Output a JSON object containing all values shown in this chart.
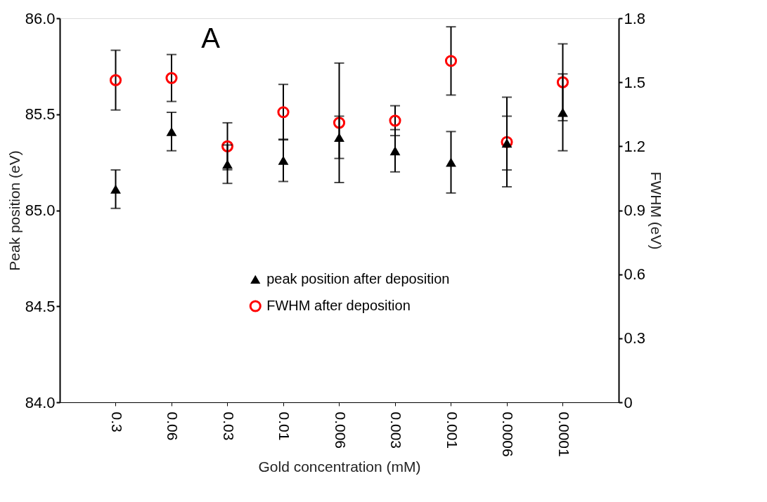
{
  "chart_data": {
    "type": "scatter",
    "xlabel": "Gold concentration (mM)",
    "ylabel": "Peak position (eV)",
    "y2label": "FWHM (eV)",
    "categories": [
      "0.3",
      "0.06",
      "0.03",
      "0.01",
      "0.006",
      "0.003",
      "0.001",
      "0.0006",
      "0.0001"
    ],
    "series": [
      {
        "name": "peak position after deposition",
        "color": "#000000",
        "marker": "triangle",
        "values": [
          85.11,
          85.41,
          85.24,
          85.26,
          85.38,
          85.31,
          85.25,
          85.35,
          85.51
        ],
        "errors": [
          0.1,
          0.1,
          0.1,
          0.11,
          0.11,
          0.11,
          0.16,
          0.14,
          0.2
        ]
      },
      {
        "name": "FWHM after deposition",
        "color": "#ff0000",
        "marker": "circle",
        "axis": "y2",
        "values": [
          1.51,
          1.52,
          1.2,
          1.36,
          1.31,
          1.32,
          1.6,
          1.22,
          1.5
        ],
        "errors": [
          0.14,
          0.11,
          0.11,
          0.13,
          0.28,
          0.07,
          0.16,
          0.21,
          0.18
        ]
      }
    ],
    "ylim": [
      84,
      86
    ],
    "yticks": [
      {
        "value": 84,
        "label": "84.0"
      },
      84.5,
      {
        "value": 85,
        "label": "85.0"
      },
      85.5,
      {
        "value": 86,
        "label": "86.0"
      }
    ],
    "y2lim": [
      0,
      1.8
    ],
    "y2ticks": [
      0,
      0.3,
      0.6,
      0.9,
      1.2,
      1.5,
      1.8
    ],
    "annotations": [
      "A"
    ],
    "legend": "bottom",
    "grid": false
  }
}
